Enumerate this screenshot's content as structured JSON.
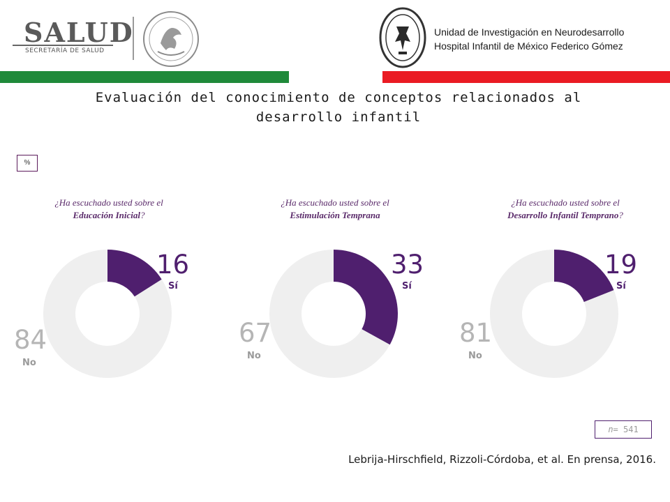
{
  "header": {
    "salud_word": "SALUD",
    "salud_sub": "SECRETARÍA DE SALUD",
    "unit_line1": "Unidad de Investigación en Neurodesarrollo",
    "unit_line2": "Hospital Infantil de México Federico Gómez",
    "colors": {
      "green": "#1f8a3a",
      "red": "#ea1b23"
    }
  },
  "title": {
    "line1": "Evaluación del conocimiento de conceptos relacionados al",
    "line2": "desarrollo infantil"
  },
  "unit_label": "%",
  "n_label": {
    "prefix": "n",
    "rest": "= 541"
  },
  "citation": "Lebrija-Hirschfield, Rizzoli-Córdoba, et al. En prensa, 2016.",
  "colors": {
    "si": "#4f1f6e",
    "no": "#efefef"
  },
  "chart_data": [
    {
      "type": "pie",
      "question_prefix": "¿Ha escuchado usted sobre el",
      "topic": "Educación Inicial",
      "question_suffix": "?",
      "slices": [
        {
          "label": "Sí",
          "value": 16
        },
        {
          "label": "No",
          "value": 84
        }
      ]
    },
    {
      "type": "pie",
      "question_prefix": "¿Ha escuchado usted sobre el",
      "topic": "Estimulación Temprana",
      "question_suffix": "",
      "slices": [
        {
          "label": "Sí",
          "value": 33
        },
        {
          "label": "No",
          "value": 67
        }
      ]
    },
    {
      "type": "pie",
      "question_prefix": "¿Ha escuchado usted sobre el",
      "topic": "Desarrollo Infantil Temprano",
      "question_suffix": "?",
      "slices": [
        {
          "label": "Sí",
          "value": 19
        },
        {
          "label": "No",
          "value": 81
        }
      ]
    }
  ]
}
